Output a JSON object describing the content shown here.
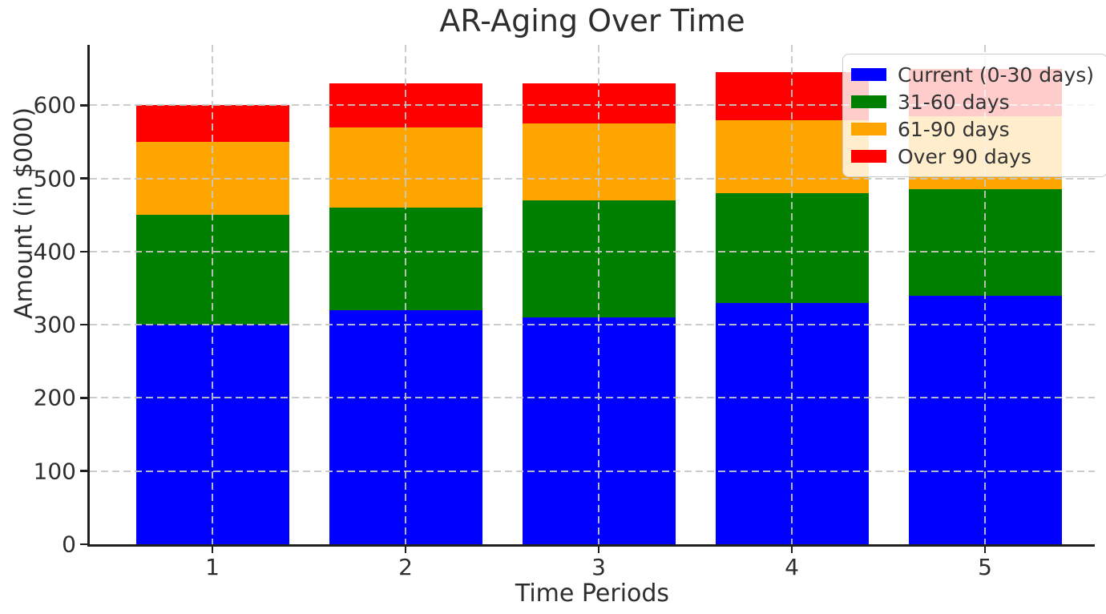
{
  "chart_data": {
    "type": "bar",
    "stacked": true,
    "title": "AR-Aging Over Time",
    "xlabel": "Time Periods",
    "ylabel": "Amount (in $000)",
    "categories": [
      "1",
      "2",
      "3",
      "4",
      "5"
    ],
    "series": [
      {
        "name": "Current (0-30 days)",
        "color": "#0000ff",
        "values": [
          300,
          320,
          310,
          330,
          340
        ]
      },
      {
        "name": "31-60 days",
        "color": "#008000",
        "values": [
          150,
          140,
          160,
          150,
          145
        ]
      },
      {
        "name": "61-90 days",
        "color": "#ffa500",
        "values": [
          100,
          110,
          105,
          100,
          100
        ]
      },
      {
        "name": "Over 90 days",
        "color": "#ff0000",
        "values": [
          50,
          60,
          55,
          65,
          65
        ]
      }
    ],
    "stack_totals": [
      600,
      630,
      630,
      645,
      650
    ],
    "yticks": [
      0,
      100,
      200,
      300,
      400,
      500,
      600
    ],
    "ylim": [
      0,
      682.5
    ],
    "grid": "dashed gridlines on both axes, drawn above bars",
    "legend_position": "upper right",
    "palette": {
      "grid_color": "#c7c7c7",
      "spine_color": "#1f1f1f",
      "text_color": "#2e2e2e",
      "legend_border": "#cbcbcb",
      "background": "#ffffff"
    }
  }
}
